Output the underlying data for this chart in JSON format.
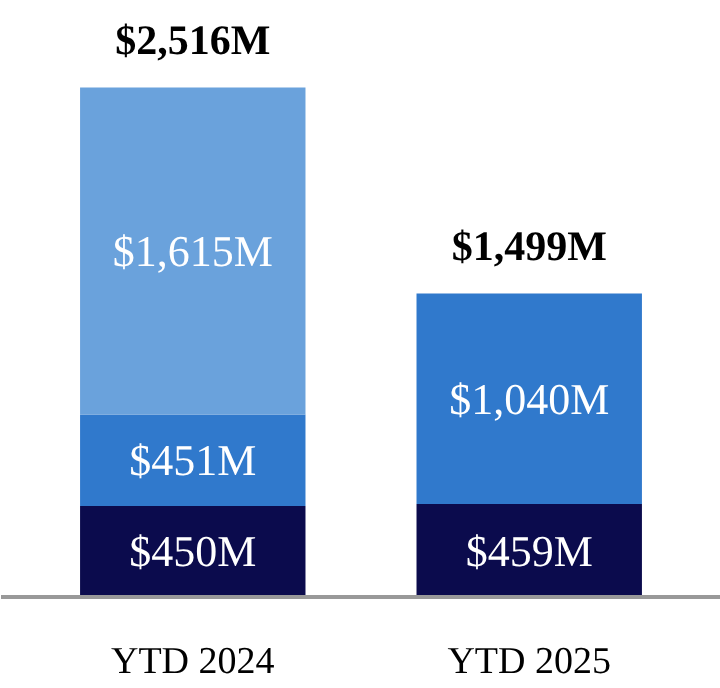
{
  "chart_data": {
    "type": "bar",
    "stacked": true,
    "categories": [
      "YTD 2024",
      "YTD 2025"
    ],
    "series": [
      {
        "color": "#0b0b4d",
        "values": [
          450,
          459
        ],
        "value_labels": [
          "$450M",
          "$459M"
        ]
      },
      {
        "color": "#3079cc",
        "values": [
          451,
          1040
        ],
        "value_labels": [
          "$451M",
          "$1,040M"
        ]
      },
      {
        "color": "#6aa2dc",
        "values": [
          1615,
          null
        ],
        "value_labels": [
          "$1,615M",
          null
        ]
      }
    ],
    "totals": [
      "$2,516M",
      "$1,499M"
    ],
    "tick_labels": "x",
    "grid": false
  }
}
